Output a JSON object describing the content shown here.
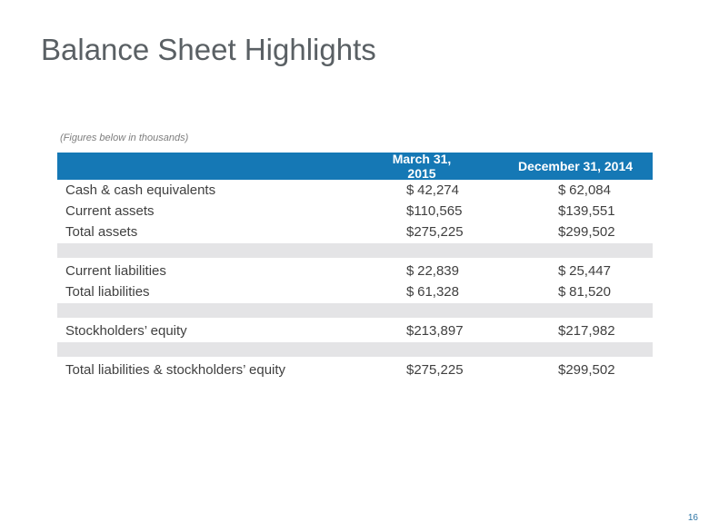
{
  "slide": {
    "title": "Balance Sheet Highlights",
    "footnote": "(Figures below in thousands)",
    "page_number": "16"
  },
  "colors": {
    "header_bg": "#1578B5",
    "header_text": "#FFFFFF",
    "title_text": "#5A6064",
    "body_text": "#404040",
    "spacer_row": "#E4E4E6",
    "footnote_text": "#7E7E7E",
    "page_number_text": "#2E75A5"
  },
  "table": {
    "columns": [
      "March 31, 2015",
      "December 31, 2014"
    ],
    "rows": [
      {
        "type": "data",
        "label": "Cash & cash equivalents",
        "values": [
          {
            "currency": "$",
            "amount": "42,274"
          },
          {
            "currency": "$",
            "amount": "62,084"
          }
        ]
      },
      {
        "type": "data",
        "label": "Current assets",
        "values": [
          {
            "currency": "$",
            "amount": "110,565"
          },
          {
            "currency": "$",
            "amount": "139,551"
          }
        ]
      },
      {
        "type": "data",
        "label": "Total assets",
        "values": [
          {
            "currency": "$",
            "amount": "275,225"
          },
          {
            "currency": "$",
            "amount": "299,502"
          }
        ]
      },
      {
        "type": "spacer"
      },
      {
        "type": "data",
        "label": "Current liabilities",
        "values": [
          {
            "currency": "$",
            "amount": "22,839"
          },
          {
            "currency": "$",
            "amount": "25,447"
          }
        ]
      },
      {
        "type": "data",
        "label": "Total liabilities",
        "values": [
          {
            "currency": "$",
            "amount": "61,328"
          },
          {
            "currency": "$",
            "amount": "81,520"
          }
        ]
      },
      {
        "type": "spacer"
      },
      {
        "type": "data",
        "label": "Stockholders’ equity",
        "values": [
          {
            "currency": "$",
            "amount": "213,897"
          },
          {
            "currency": "$",
            "amount": "217,982"
          }
        ]
      },
      {
        "type": "spacer"
      },
      {
        "type": "data",
        "label": "Total liabilities & stockholders’ equity",
        "values": [
          {
            "currency": "$",
            "amount": "275,225"
          },
          {
            "currency": "$",
            "amount": "299,502"
          }
        ]
      }
    ]
  }
}
